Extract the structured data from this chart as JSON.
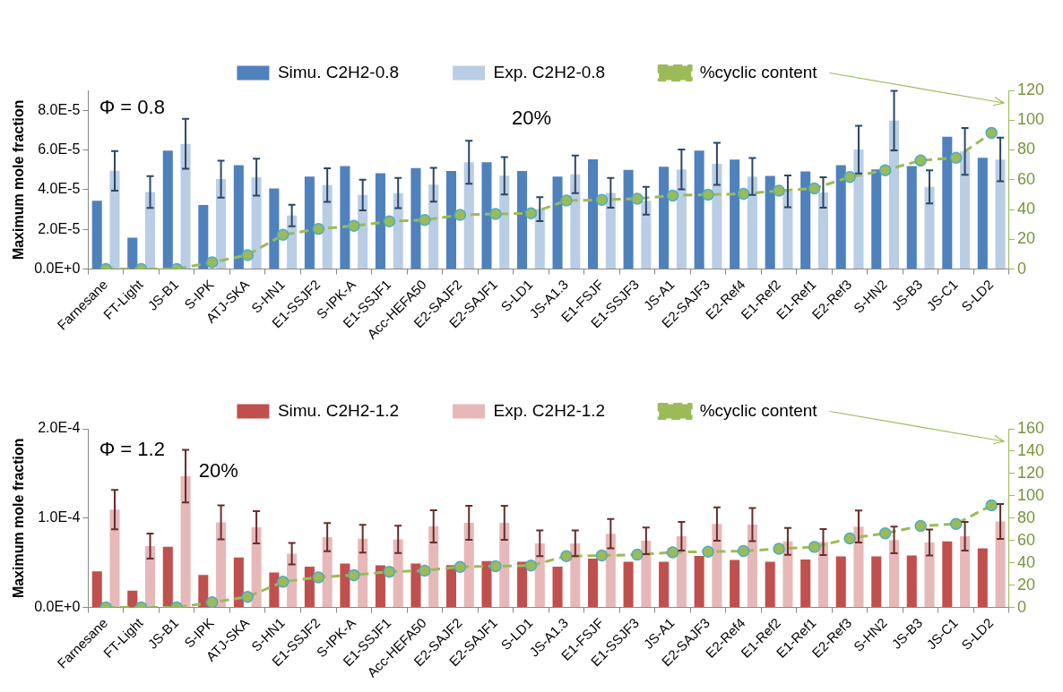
{
  "chart_data": [
    {
      "type": "bar",
      "categories": [
        "Farnesane",
        "FT-Light",
        "JS-B1",
        "S-IPK",
        "ATJ-SKA",
        "S-HN1",
        "E1-SSJF2",
        "S-IPK-A",
        "E1-SSJF1",
        "Acc-HEFA50",
        "E2-SAJF2",
        "E2-SAJF1",
        "S-LD1",
        "JS-A1.3",
        "E1-FSJF",
        "E1-SSJF3",
        "JS-A1",
        "E2-SAJF3",
        "E2-Ref4",
        "E1-Ref2",
        "E1-Ref1",
        "E2-Ref3",
        "S-HN2",
        "JS-B3",
        "JS-C1",
        "S-LD2"
      ],
      "series": [
        {
          "name": "Simu. C2H2-0.8",
          "color": "#4f81bd",
          "values": [
            3.44e-05,
            1.58e-05,
            5.97e-05,
            3.23e-05,
            5.23e-05,
            4.06e-05,
            4.66e-05,
            5.19e-05,
            4.83e-05,
            5.09e-05,
            4.94e-05,
            5.38e-05,
            4.94e-05,
            4.66e-05,
            5.53e-05,
            5e-05,
            5.16e-05,
            5.97e-05,
            5.52e-05,
            4.69e-05,
            4.92e-05,
            5.23e-05,
            5.02e-05,
            5.19e-05,
            6.67e-05,
            5.61e-05
          ]
        },
        {
          "name": "Exp. C2H2-0.8",
          "color": "#b9cde5",
          "values": [
            4.95e-05,
            3.88e-05,
            6.31e-05,
            4.53e-05,
            4.63e-05,
            2.7e-05,
            4.23e-05,
            3.73e-05,
            3.83e-05,
            4.25e-05,
            5.38e-05,
            4.7e-05,
            3.02e-05,
            4.77e-05,
            3.84e-05,
            3.44e-05,
            5.02e-05,
            5.3e-05,
            4.66e-05,
            3.92e-05,
            3.86e-05,
            6.02e-05,
            7.48e-05,
            4.14e-05,
            5.93e-05,
            5.52e-05
          ],
          "errors": [
            1e-05,
            8e-06,
            1.26e-05,
            9.3e-06,
            9.3e-06,
            5.4e-06,
            8.5e-06,
            7.7e-06,
            7.6e-06,
            8.5e-06,
            1.08e-05,
            9.4e-06,
            6e-06,
            9.5e-06,
            7.5e-06,
            7e-06,
            1e-05,
            1.06e-05,
            9.3e-06,
            8e-06,
            7.7e-06,
            1.2e-05,
            1.5e-05,
            8.3e-06,
            1.18e-05,
            1.1e-05
          ]
        },
        {
          "name": "%cyclic content",
          "type": "line",
          "axis": "y2",
          "color": "#9bbb59",
          "marker": "circle",
          "line_style": "dashed",
          "values": [
            0,
            0,
            0,
            4.6,
            9.4,
            23,
            27,
            29,
            32,
            33,
            36.4,
            37,
            37.5,
            46,
            46.5,
            47.3,
            49.4,
            50,
            50.5,
            52.6,
            54.2,
            61.8,
            66.4,
            73,
            74.8,
            91.5
          ]
        }
      ],
      "ylabel": "Maximum mole fraction",
      "ylim": [
        0,
        9e-05
      ],
      "yticks": [
        {
          "value": 0,
          "label": "0.0E+0"
        },
        {
          "value": 2e-05,
          "label": "2.0E-5"
        },
        {
          "value": 4e-05,
          "label": "4.0E-5"
        },
        {
          "value": 6e-05,
          "label": "6.0E-5"
        },
        {
          "value": 8e-05,
          "label": "8.0E-5"
        }
      ],
      "y2lim": [
        0,
        120
      ],
      "y2ticks": [
        0,
        20,
        40,
        60,
        80,
        100,
        120
      ],
      "legend": "top",
      "annotations": [
        "Φ = 0.8",
        "20%"
      ]
    },
    {
      "type": "bar",
      "categories": [
        "Farnesane",
        "FT-Light",
        "JS-B1",
        "S-IPK",
        "ATJ-SKA",
        "S-HN1",
        "E1-SSJF2",
        "S-IPK-A",
        "E1-SSJF1",
        "Acc-HEFA50",
        "E2-SAJF2",
        "E2-SAJF1",
        "S-LD1",
        "JS-A1.3",
        "E1-FSJF",
        "E1-SSJF3",
        "JS-A1",
        "E2-SAJF3",
        "E2-Ref4",
        "E1-Ref2",
        "E1-Ref1",
        "E2-Ref3",
        "S-HN2",
        "JS-B3",
        "JS-C1",
        "S-LD2"
      ],
      "series": [
        {
          "name": "Simu. C2H2-1.2",
          "color": "#c0504d",
          "values": [
            4.05e-05,
            1.89e-05,
            6.8e-05,
            3.64e-05,
            5.6e-05,
            3.92e-05,
            4.57e-05,
            4.91e-05,
            4.71e-05,
            4.91e-05,
            4.74e-05,
            5.19e-05,
            5.12e-05,
            4.56e-05,
            5.47e-05,
            5.12e-05,
            5.12e-05,
            5.78e-05,
            5.33e-05,
            5.12e-05,
            5.37e-05,
            5.71e-05,
            5.71e-05,
            5.82e-05,
            7.39e-05,
            6.62e-05
          ]
        },
        {
          "name": "Exp. C2H2-1.2",
          "color": "#e6b9b8",
          "values": [
            0.0001096,
            6.87e-05,
            0.000147,
            9.52e-05,
            8.97e-05,
            6.01e-05,
            7.87e-05,
            7.7e-05,
            7.63e-05,
            9.07e-05,
            9.48e-05,
            9.48e-05,
            7.18e-05,
            7.18e-05,
            8.26e-05,
            7.46e-05,
            7.98e-05,
            9.34e-05,
            9.27e-05,
            7.39e-05,
            7.32e-05,
            9.06e-05,
            7.56e-05,
            7.28e-05,
            7.98e-05,
            9.62e-05
          ],
          "errors": [
            2.2e-05,
            1.4e-05,
            2.95e-05,
            1.9e-05,
            1.8e-05,
            1.2e-05,
            1.58e-05,
            1.55e-05,
            1.53e-05,
            1.8e-05,
            1.9e-05,
            1.9e-05,
            1.44e-05,
            1.44e-05,
            1.65e-05,
            1.5e-05,
            1.6e-05,
            1.86e-05,
            1.85e-05,
            1.5e-05,
            1.45e-05,
            1.8e-05,
            1.5e-05,
            1.45e-05,
            1.6e-05,
            1.95e-05
          ]
        },
        {
          "name": "%cyclic content",
          "type": "line",
          "axis": "y2",
          "color": "#9bbb59",
          "marker": "circle",
          "line_style": "dashed",
          "values": [
            0,
            0,
            0,
            4.6,
            9.4,
            23,
            27,
            29,
            32,
            33,
            36.4,
            37,
            37.5,
            46,
            46.5,
            47.3,
            49.4,
            50,
            50.5,
            52.6,
            54.2,
            61.8,
            66.4,
            73,
            74.8,
            91.5
          ]
        }
      ],
      "ylabel": "Maximum mole fraction",
      "ylim": [
        0,
        0.0002
      ],
      "yticks": [
        {
          "value": 0,
          "label": "0.0E+0"
        },
        {
          "value": 0.0001,
          "label": "1.0E-4"
        },
        {
          "value": 0.0002,
          "label": "2.0E-4"
        }
      ],
      "y2lim": [
        0,
        160
      ],
      "y2ticks": [
        0,
        20,
        40,
        60,
        80,
        100,
        120,
        140,
        160
      ],
      "legend": "top",
      "annotations": [
        "Φ = 1.2",
        "20%"
      ]
    }
  ]
}
